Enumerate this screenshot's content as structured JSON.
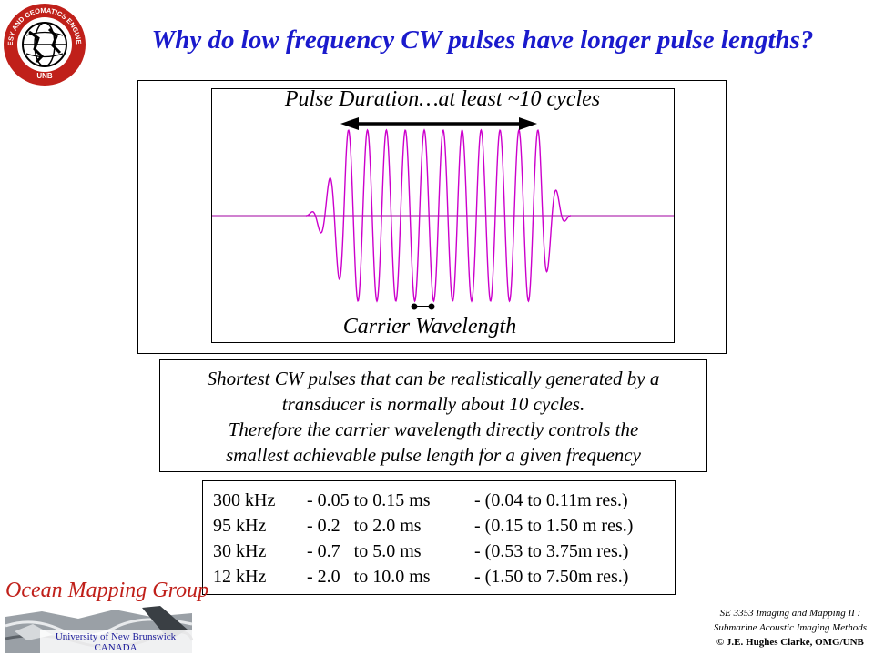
{
  "title": "Why do low frequency CW pulses have longer pulse lengths?",
  "logo": {
    "icon": "globe-seal-icon",
    "ring_color": "#c0201a",
    "top_text": "GEODESY AND GEOMATICS ENGINEERING",
    "bottom_text": "UNB"
  },
  "diagram": {
    "pulse_label": "Pulse Duration…at least ~10 cycles",
    "carrier_label": "Carrier Wavelength",
    "wave_color": "#cc00cc",
    "axis_color": "#a000a0"
  },
  "explanation": {
    "lines": [
      "Shortest CW pulses that can be realistically generated by a",
      "transducer is normally about 10 cycles.",
      "Therefore the carrier wavelength directly controls the",
      "smallest achievable pulse length for a given frequency"
    ]
  },
  "table": {
    "rows": [
      [
        "300 kHz",
        "- 0.05 to 0.15 ms",
        "- (0.04 to 0.11m res.)"
      ],
      [
        "95 kHz",
        "- 0.2   to 2.0 ms",
        "- (0.15 to 1.50 m res.)"
      ],
      [
        "30 kHz",
        "- 0.7   to 5.0 ms",
        "- (0.53 to 3.75m res.)"
      ],
      [
        "12 kHz",
        "- 2.0   to 10.0 ms",
        "- (1.50 to 7.50m res.)"
      ]
    ]
  },
  "footer": {
    "group_name": "Ocean Mapping Group",
    "university": "University of New Brunswick",
    "country": "CANADA",
    "course": "SE 3353 Imaging and Mapping II :",
    "course_sub": "Submarine Acoustic Imaging Methods",
    "copyright": "© J.E. Hughes Clarke, OMG/UNB",
    "group_color": "#c0201a"
  }
}
